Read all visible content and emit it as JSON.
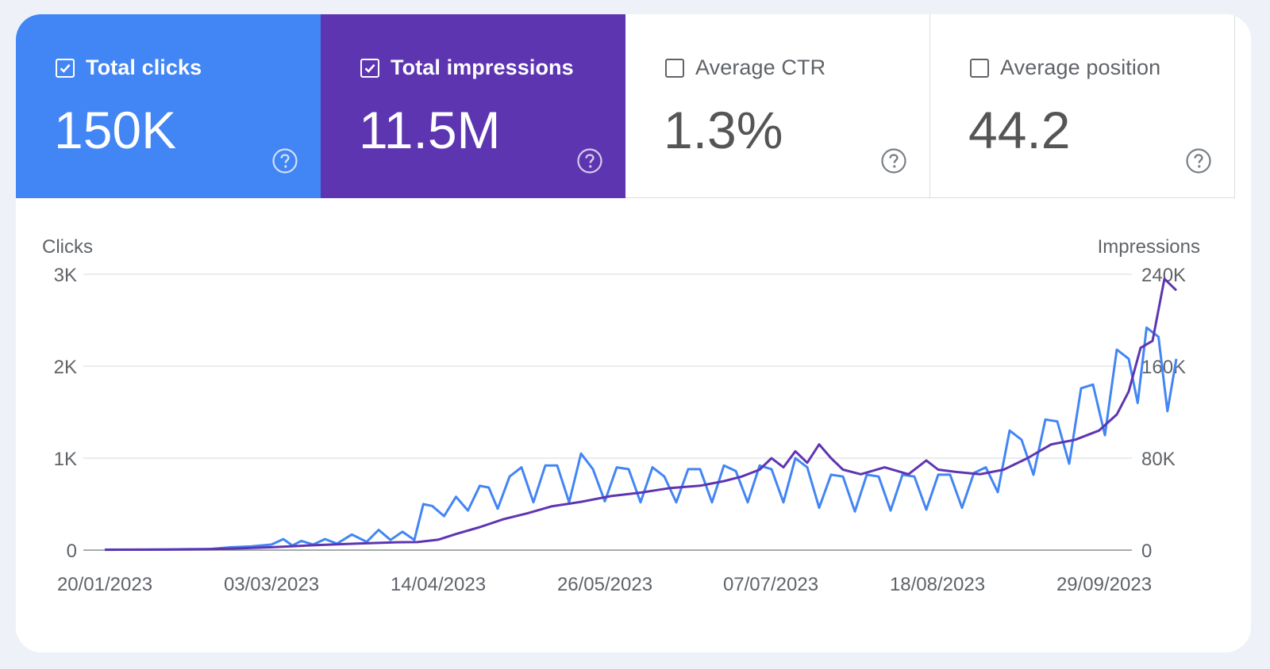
{
  "metrics": [
    {
      "key": "clicks",
      "label": "Total clicks",
      "value": "150K",
      "checked": true,
      "color": "#4285f4"
    },
    {
      "key": "impr",
      "label": "Total impressions",
      "value": "11.5M",
      "checked": true,
      "color": "#5e35b1"
    },
    {
      "key": "ctr",
      "label": "Average CTR",
      "value": "1.3%",
      "checked": false,
      "color": "#ffffff"
    },
    {
      "key": "pos",
      "label": "Average position",
      "value": "44.2",
      "checked": false,
      "color": "#ffffff"
    }
  ],
  "icons": {
    "checkbox_checked": "checkbox-checked-icon",
    "checkbox_empty": "checkbox-empty-icon",
    "help": "help-circle-icon"
  },
  "chart_data": {
    "type": "line",
    "left_axis_title": "Clicks",
    "right_axis_title": "Impressions",
    "left_ticks": [
      "3K",
      "2K",
      "1K",
      "0"
    ],
    "right_ticks": [
      "240K",
      "160K",
      "80K",
      "0"
    ],
    "left_ylim": [
      0,
      3000
    ],
    "right_ylim": [
      0,
      240000
    ],
    "x_tick_labels": [
      "20/01/2023",
      "03/03/2023",
      "14/04/2023",
      "26/05/2023",
      "07/07/2023",
      "18/08/2023",
      "29/09/2023"
    ],
    "x_range": [
      "20/01/2023",
      "06/10/2023"
    ],
    "grid": true,
    "series": [
      {
        "key": "clicks",
        "axis": "left",
        "color": "#4285f4",
        "points": [
          [
            0,
            5
          ],
          [
            7,
            5
          ],
          [
            14,
            5
          ],
          [
            21,
            6
          ],
          [
            28,
            10
          ],
          [
            35,
            10
          ],
          [
            42,
            30
          ],
          [
            49,
            40
          ],
          [
            56,
            60
          ],
          [
            60,
            120
          ],
          [
            63,
            50
          ],
          [
            66,
            100
          ],
          [
            70,
            60
          ],
          [
            74,
            120
          ],
          [
            78,
            70
          ],
          [
            83,
            170
          ],
          [
            88,
            90
          ],
          [
            92,
            220
          ],
          [
            96,
            110
          ],
          [
            100,
            200
          ],
          [
            104,
            110
          ],
          [
            107,
            500
          ],
          [
            110,
            480
          ],
          [
            114,
            370
          ],
          [
            118,
            580
          ],
          [
            122,
            430
          ],
          [
            126,
            700
          ],
          [
            129,
            680
          ],
          [
            132,
            450
          ],
          [
            136,
            800
          ],
          [
            140,
            900
          ],
          [
            144,
            520
          ],
          [
            148,
            920
          ],
          [
            152,
            920
          ],
          [
            156,
            520
          ],
          [
            160,
            1050
          ],
          [
            164,
            880
          ],
          [
            168,
            530
          ],
          [
            172,
            900
          ],
          [
            176,
            880
          ],
          [
            180,
            520
          ],
          [
            184,
            900
          ],
          [
            188,
            800
          ],
          [
            192,
            520
          ],
          [
            196,
            880
          ],
          [
            200,
            880
          ],
          [
            204,
            520
          ],
          [
            208,
            920
          ],
          [
            212,
            860
          ],
          [
            216,
            520
          ],
          [
            220,
            920
          ],
          [
            224,
            880
          ],
          [
            228,
            520
          ],
          [
            232,
            1000
          ],
          [
            236,
            900
          ],
          [
            240,
            460
          ],
          [
            244,
            820
          ],
          [
            248,
            800
          ],
          [
            252,
            420
          ],
          [
            256,
            820
          ],
          [
            260,
            800
          ],
          [
            264,
            430
          ],
          [
            268,
            820
          ],
          [
            272,
            800
          ],
          [
            276,
            440
          ],
          [
            280,
            820
          ],
          [
            284,
            820
          ],
          [
            288,
            460
          ],
          [
            292,
            840
          ],
          [
            296,
            900
          ],
          [
            300,
            630
          ],
          [
            304,
            1300
          ],
          [
            308,
            1200
          ],
          [
            312,
            820
          ],
          [
            316,
            1420
          ],
          [
            320,
            1400
          ],
          [
            324,
            940
          ],
          [
            328,
            1760
          ],
          [
            332,
            1800
          ],
          [
            336,
            1250
          ],
          [
            340,
            2180
          ],
          [
            344,
            2080
          ],
          [
            347,
            1600
          ],
          [
            350,
            2420
          ],
          [
            354,
            2320
          ],
          [
            357,
            1510
          ],
          [
            360,
            2080
          ]
        ]
      },
      {
        "key": "impressions",
        "axis": "right",
        "color": "#5e35b1",
        "points": [
          [
            0,
            300
          ],
          [
            14,
            400
          ],
          [
            28,
            600
          ],
          [
            42,
            1200
          ],
          [
            56,
            2500
          ],
          [
            70,
            4200
          ],
          [
            84,
            5600
          ],
          [
            98,
            6800
          ],
          [
            105,
            7000
          ],
          [
            112,
            9000
          ],
          [
            118,
            14000
          ],
          [
            126,
            20000
          ],
          [
            134,
            27000
          ],
          [
            142,
            32000
          ],
          [
            150,
            38000
          ],
          [
            160,
            42000
          ],
          [
            170,
            47000
          ],
          [
            180,
            50000
          ],
          [
            190,
            54000
          ],
          [
            200,
            56000
          ],
          [
            208,
            60000
          ],
          [
            214,
            64000
          ],
          [
            220,
            70000
          ],
          [
            224,
            80000
          ],
          [
            228,
            72000
          ],
          [
            232,
            86000
          ],
          [
            236,
            76000
          ],
          [
            240,
            92000
          ],
          [
            244,
            80000
          ],
          [
            248,
            70000
          ],
          [
            254,
            66000
          ],
          [
            262,
            72000
          ],
          [
            270,
            66000
          ],
          [
            276,
            78000
          ],
          [
            280,
            70000
          ],
          [
            286,
            68000
          ],
          [
            294,
            66000
          ],
          [
            302,
            70000
          ],
          [
            310,
            80000
          ],
          [
            318,
            92000
          ],
          [
            326,
            96000
          ],
          [
            334,
            104000
          ],
          [
            340,
            118000
          ],
          [
            344,
            138000
          ],
          [
            348,
            176000
          ],
          [
            352,
            182000
          ],
          [
            356,
            236000
          ],
          [
            360,
            226000
          ]
        ]
      }
    ]
  }
}
